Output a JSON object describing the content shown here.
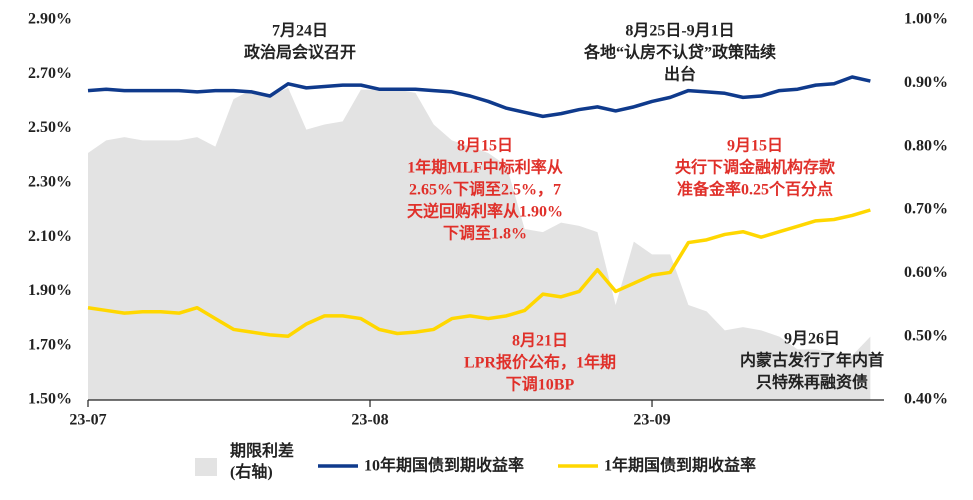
{
  "chart_data": {
    "type": "line",
    "x": [
      0,
      2,
      4,
      6,
      8,
      10,
      12,
      14,
      16,
      18,
      20,
      22,
      24,
      26,
      28,
      30,
      32,
      34,
      36,
      38,
      40,
      42,
      44,
      46,
      48,
      50,
      52,
      54,
      56,
      58,
      60,
      62,
      64,
      66,
      68,
      70,
      72,
      74,
      76,
      78,
      80,
      82,
      84,
      86
    ],
    "xlim": [
      0,
      87.5
    ],
    "xticks": [
      {
        "value": 0,
        "label": "23-07"
      },
      {
        "value": 31,
        "label": "23-08"
      },
      {
        "value": 62,
        "label": "23-09"
      }
    ],
    "ylim": [
      1.5,
      2.9
    ],
    "yticks": [
      {
        "value": 1.5,
        "label": "1.50%"
      },
      {
        "value": 1.7,
        "label": "1.70%"
      },
      {
        "value": 1.9,
        "label": "1.90%"
      },
      {
        "value": 2.1,
        "label": "2.10%"
      },
      {
        "value": 2.3,
        "label": "2.30%"
      },
      {
        "value": 2.5,
        "label": "2.50%"
      },
      {
        "value": 2.7,
        "label": "2.70%"
      },
      {
        "value": 2.9,
        "label": "2.90%"
      }
    ],
    "y2lim": [
      0.4,
      1.0
    ],
    "y2ticks": [
      {
        "value": 0.4,
        "label": "0.40%"
      },
      {
        "value": 0.5,
        "label": "0.50%"
      },
      {
        "value": 0.6,
        "label": "0.60%"
      },
      {
        "value": 0.7,
        "label": "0.70%"
      },
      {
        "value": 0.8,
        "label": "0.80%"
      },
      {
        "value": 0.9,
        "label": "0.90%"
      },
      {
        "value": 1.0,
        "label": "1.00%"
      }
    ],
    "series": [
      {
        "name": "期限利差(右轴)",
        "type": "area",
        "axis": "y2",
        "color": "#e3e3e3",
        "values": [
          0.79,
          0.81,
          0.815,
          0.81,
          0.81,
          0.81,
          0.815,
          0.8,
          0.875,
          0.89,
          0.88,
          0.893,
          0.827,
          0.835,
          0.84,
          0.89,
          0.89,
          0.89,
          0.885,
          0.835,
          0.81,
          0.8,
          0.79,
          0.77,
          0.67,
          0.665,
          0.68,
          0.675,
          0.665,
          0.55,
          0.65,
          0.63,
          0.63,
          0.55,
          0.54,
          0.51,
          0.515,
          0.51,
          0.5,
          0.48,
          0.48,
          0.475,
          0.47,
          0.5
        ]
      },
      {
        "name": "10年期国债到期收益率",
        "type": "line",
        "color": "#0f3a8c",
        "values": [
          2.64,
          2.645,
          2.64,
          2.64,
          2.64,
          2.64,
          2.635,
          2.64,
          2.64,
          2.635,
          2.62,
          2.665,
          2.65,
          2.655,
          2.66,
          2.66,
          2.645,
          2.645,
          2.645,
          2.64,
          2.635,
          2.62,
          2.6,
          2.575,
          2.56,
          2.545,
          2.555,
          2.57,
          2.58,
          2.565,
          2.58,
          2.6,
          2.615,
          2.64,
          2.635,
          2.63,
          2.615,
          2.62,
          2.64,
          2.645,
          2.66,
          2.665,
          2.69,
          2.675
        ]
      },
      {
        "name": "1年期国债到期收益率",
        "type": "line",
        "color": "#ffd700",
        "values": [
          1.84,
          1.83,
          1.82,
          1.825,
          1.825,
          1.82,
          1.84,
          1.8,
          1.76,
          1.75,
          1.74,
          1.735,
          1.78,
          1.81,
          1.81,
          1.8,
          1.76,
          1.745,
          1.75,
          1.76,
          1.8,
          1.81,
          1.8,
          1.81,
          1.83,
          1.89,
          1.88,
          1.9,
          1.98,
          1.9,
          1.93,
          1.96,
          1.97,
          2.08,
          2.09,
          2.11,
          2.12,
          2.1,
          2.12,
          2.14,
          2.16,
          2.165,
          2.18,
          2.2
        ]
      }
    ],
    "annotations": [
      {
        "lines": [
          "7月24日",
          "政治局会议召开"
        ],
        "color": "#222222"
      },
      {
        "lines": [
          "8月25日-9月1日",
          "各地“认房不认贷”政策陆续",
          "出台"
        ],
        "color": "#222222"
      },
      {
        "lines": [
          "8月15日",
          "1年期MLF中标利率从",
          "2.65%下调至2.5%，7",
          "天逆回购利率从1.90%",
          "下调至1.8%"
        ],
        "color": "#e0302a"
      },
      {
        "lines": [
          "9月15日",
          "央行下调金融机构存款",
          "准备金率0.25个百分点"
        ],
        "color": "#e0302a"
      },
      {
        "lines": [
          "8月21日",
          "LPR报价公布，1年期",
          "下调10BP"
        ],
        "color": "#e0302a"
      },
      {
        "lines": [
          "9月26日",
          "内蒙古发行了年内首",
          "只特殊再融资债"
        ],
        "color": "#222222"
      }
    ]
  }
}
